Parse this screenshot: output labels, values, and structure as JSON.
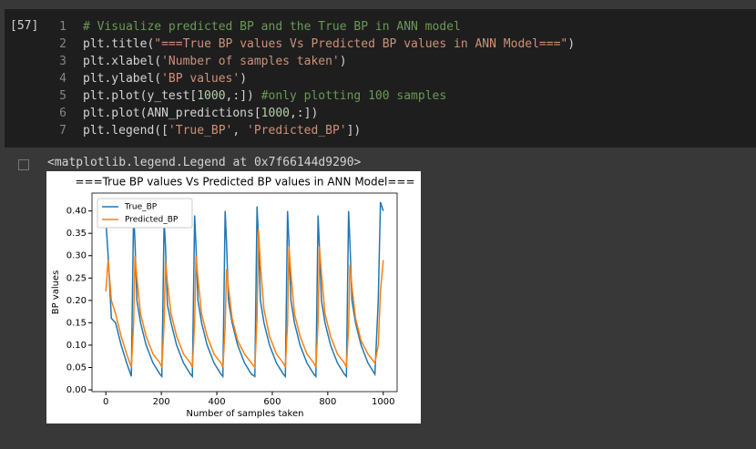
{
  "cell": {
    "execution_count": "[57]",
    "lines": [
      {
        "number": "1",
        "code": "# Visualize predicted BP and the True BP in ANN model"
      },
      {
        "number": "2",
        "code": "plt.title(\"===True BP values Vs Predicted BP values in ANN Model===\")"
      },
      {
        "number": "3",
        "code": "plt.xlabel('Number of samples taken')"
      },
      {
        "number": "4",
        "code": "plt.ylabel('BP values')"
      },
      {
        "number": "5",
        "code": "plt.plot(y_test[1000,:]) #only plotting 100 samples"
      },
      {
        "number": "6",
        "code": "plt.plot(ANN_predictions[1000,:])"
      },
      {
        "number": "7",
        "code": "plt.legend(['True_BP', 'Predicted_BP'])"
      }
    ]
  },
  "output": {
    "text": "<matplotlib.legend.Legend at 0x7f66144d9290>"
  },
  "chart_data": {
    "type": "line",
    "title": "===True BP values Vs Predicted BP values in ANN Model===",
    "xlabel": "Number of samples taken",
    "ylabel": "BP values",
    "x": [
      0,
      8,
      20,
      35,
      55,
      75,
      92,
      100,
      105,
      112,
      125,
      145,
      170,
      195,
      202,
      210,
      215,
      222,
      235,
      255,
      280,
      305,
      312,
      320,
      325,
      332,
      345,
      365,
      390,
      415,
      422,
      430,
      435,
      442,
      455,
      475,
      500,
      525,
      537,
      545,
      550,
      557,
      570,
      590,
      615,
      640,
      647,
      655,
      660,
      667,
      680,
      700,
      725,
      750,
      757,
      765,
      770,
      777,
      790,
      810,
      835,
      860,
      867,
      875,
      880,
      887,
      900,
      920,
      945,
      970,
      982,
      990,
      1000
    ],
    "series": [
      {
        "name": "True_BP",
        "color": "#1f77b4",
        "values": [
          0.38,
          0.3,
          0.16,
          0.15,
          0.1,
          0.06,
          0.03,
          0.4,
          0.33,
          0.2,
          0.15,
          0.1,
          0.06,
          0.035,
          0.03,
          0.38,
          0.32,
          0.19,
          0.15,
          0.1,
          0.06,
          0.035,
          0.03,
          0.39,
          0.32,
          0.2,
          0.15,
          0.1,
          0.06,
          0.035,
          0.03,
          0.4,
          0.33,
          0.2,
          0.15,
          0.1,
          0.06,
          0.035,
          0.03,
          0.41,
          0.34,
          0.2,
          0.15,
          0.1,
          0.06,
          0.035,
          0.03,
          0.4,
          0.33,
          0.2,
          0.15,
          0.1,
          0.06,
          0.035,
          0.03,
          0.39,
          0.32,
          0.2,
          0.15,
          0.1,
          0.06,
          0.035,
          0.03,
          0.4,
          0.33,
          0.2,
          0.15,
          0.1,
          0.06,
          0.035,
          0.2,
          0.42,
          0.4
        ]
      },
      {
        "name": "Predicted_BP",
        "color": "#ff7f0e",
        "values": [
          0.22,
          0.29,
          0.2,
          0.17,
          0.12,
          0.08,
          0.05,
          0.15,
          0.3,
          0.25,
          0.17,
          0.12,
          0.08,
          0.06,
          0.05,
          0.15,
          0.29,
          0.24,
          0.17,
          0.12,
          0.08,
          0.06,
          0.05,
          0.15,
          0.3,
          0.25,
          0.17,
          0.12,
          0.08,
          0.06,
          0.05,
          0.14,
          0.27,
          0.23,
          0.16,
          0.11,
          0.08,
          0.06,
          0.05,
          0.16,
          0.36,
          0.28,
          0.18,
          0.12,
          0.08,
          0.06,
          0.05,
          0.15,
          0.32,
          0.26,
          0.17,
          0.12,
          0.08,
          0.06,
          0.05,
          0.15,
          0.32,
          0.26,
          0.17,
          0.12,
          0.08,
          0.06,
          0.05,
          0.14,
          0.28,
          0.23,
          0.16,
          0.11,
          0.08,
          0.06,
          0.1,
          0.22,
          0.29
        ]
      }
    ],
    "xlim": [
      -50,
      1050
    ],
    "ylim": [
      -0.004,
      0.44
    ],
    "xticks": [
      0,
      200,
      400,
      600,
      800,
      1000
    ],
    "yticks": [
      {
        "value": 0,
        "label": "0.00"
      },
      {
        "value": 0.05,
        "label": "0.05"
      },
      {
        "value": 0.1,
        "label": "0.10"
      },
      {
        "value": 0.15,
        "label": "0.15"
      },
      {
        "value": 0.2,
        "label": "0.20"
      },
      {
        "value": 0.25,
        "label": "0.25"
      },
      {
        "value": 0.3,
        "label": "0.30"
      },
      {
        "value": 0.35,
        "label": "0.35"
      },
      {
        "value": 0.4,
        "label": "0.40"
      }
    ],
    "legend": "upper left"
  }
}
